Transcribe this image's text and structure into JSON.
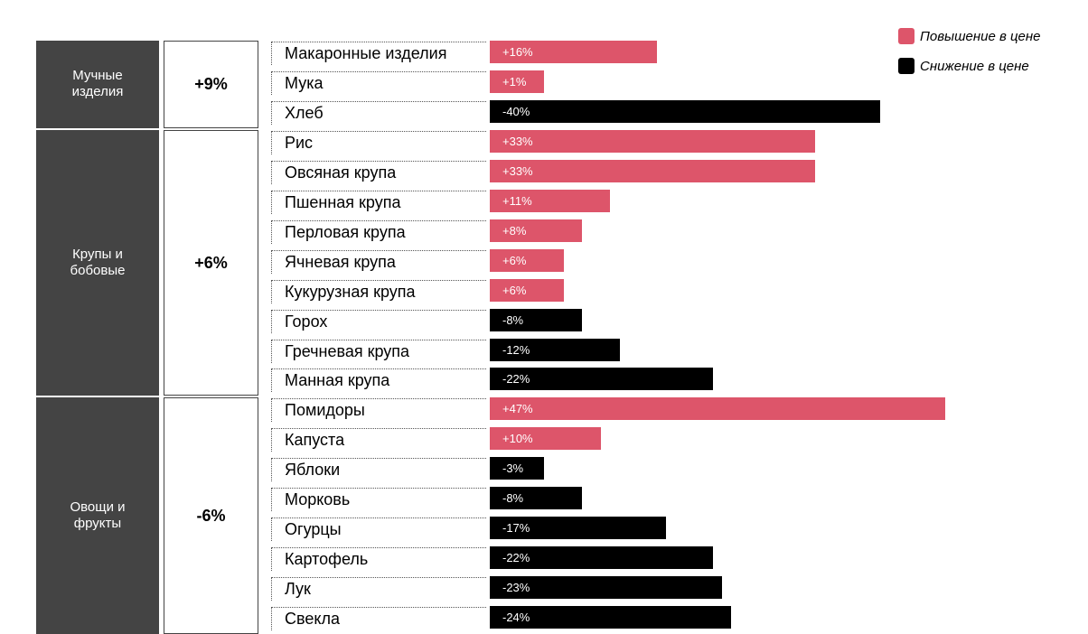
{
  "chart_data": {
    "type": "bar",
    "orientation": "horizontal",
    "legend": {
      "position": "top-right",
      "items": [
        {
          "label": "Повышение в цене",
          "color": "#dd556a"
        },
        {
          "label": "Снижение в цене",
          "color": "#000000"
        }
      ]
    },
    "groups": [
      {
        "name": "Мучные\nизделия",
        "change": "+9%",
        "items": [
          {
            "label": "Макаронные изделия",
            "value": 16,
            "display": "+16%"
          },
          {
            "label": "Мука",
            "value": 1,
            "display": "+1%"
          },
          {
            "label": "Хлеб",
            "value": -40,
            "display": "-40%"
          }
        ]
      },
      {
        "name": "Крупы и\nбобовые",
        "change": "+6%",
        "items": [
          {
            "label": "Рис",
            "value": 33,
            "display": "+33%"
          },
          {
            "label": "Овсяная крупа",
            "value": 33,
            "display": "+33%"
          },
          {
            "label": "Пшенная крупа",
            "value": 11,
            "display": "+11%"
          },
          {
            "label": "Перловая крупа",
            "value": 8,
            "display": "+8%"
          },
          {
            "label": "Ячневая крупа",
            "value": 6,
            "display": "+6%"
          },
          {
            "label": "Кукурузная крупа",
            "value": 6,
            "display": "+6%"
          },
          {
            "label": "Горох",
            "value": -8,
            "display": "-8%"
          },
          {
            "label": "Гречневая крупа",
            "value": -12,
            "display": "-12%"
          },
          {
            "label": "Манная крупа",
            "value": -22,
            "display": "-22%"
          }
        ]
      },
      {
        "name": "Овощи и\nфрукты",
        "change": "-6%",
        "items": [
          {
            "label": "Помидоры",
            "value": 47,
            "display": "+47%"
          },
          {
            "label": "Капуста",
            "value": 10,
            "display": "+10%"
          },
          {
            "label": "Яблоки",
            "value": -3,
            "display": "-3%"
          },
          {
            "label": "Морковь",
            "value": -8,
            "display": "-8%"
          },
          {
            "label": "Огурцы",
            "value": -17,
            "display": "-17%"
          },
          {
            "label": "Картофель",
            "value": -22,
            "display": "-22%"
          },
          {
            "label": "Лук",
            "value": -23,
            "display": "-23%"
          },
          {
            "label": "Свекла",
            "value": -24,
            "display": "-24%"
          }
        ]
      }
    ]
  }
}
